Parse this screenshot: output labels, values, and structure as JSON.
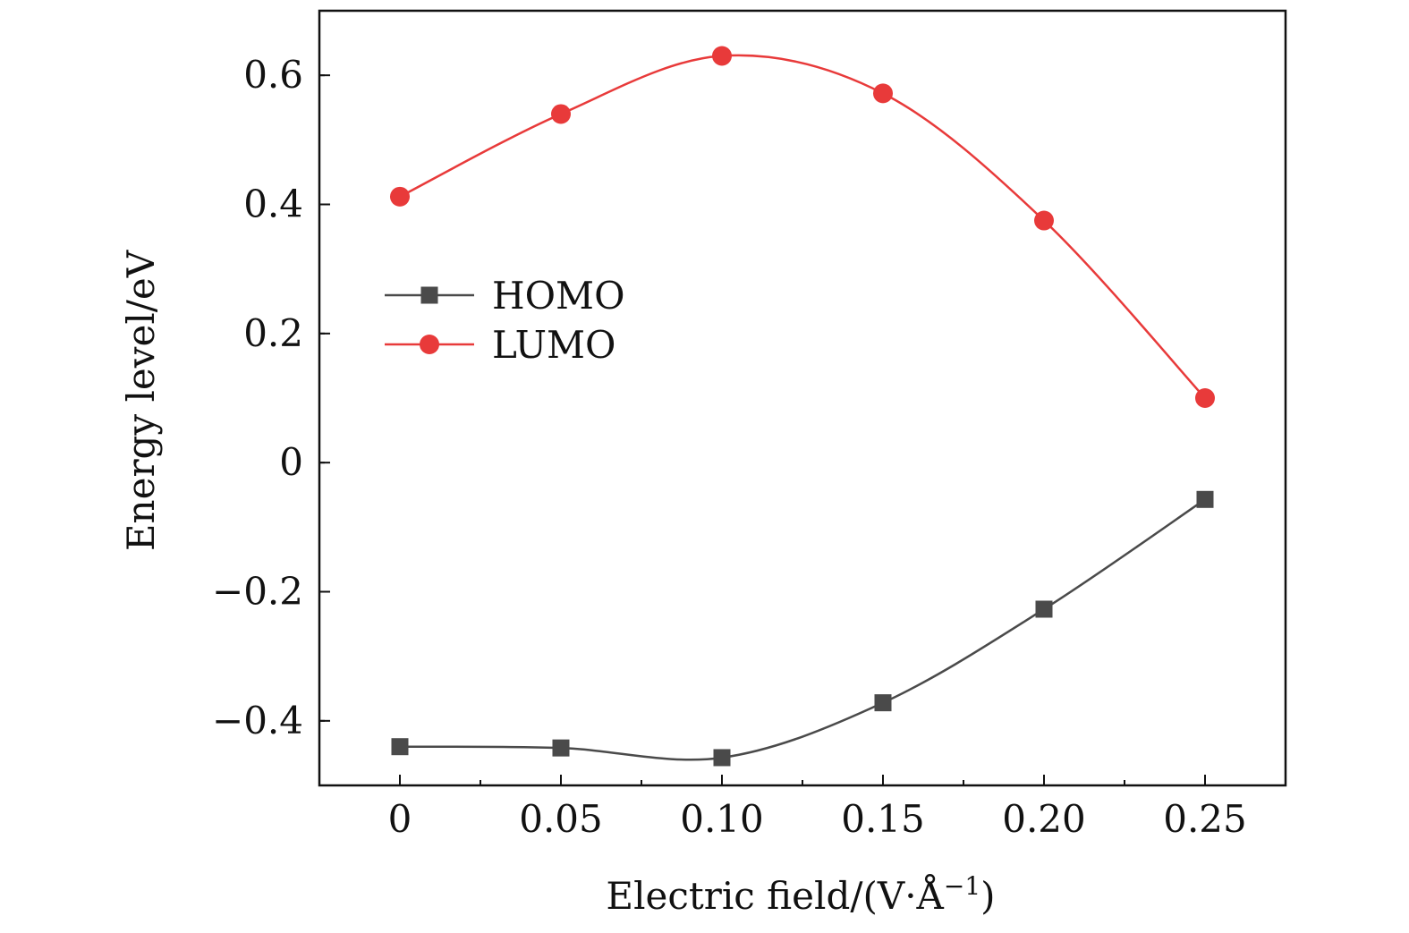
{
  "chart_data": {
    "type": "line",
    "xlabel": "Electric field/(V·Å",
    "xlabel_sup": "−1",
    "xlabel_close": ")",
    "ylabel": "Energy level/eV",
    "x": [
      0,
      0.05,
      0.1,
      0.15,
      0.2,
      0.25
    ],
    "x_tick_labels": [
      "0",
      "0.05",
      "0.10",
      "0.15",
      "0.20",
      "0.25"
    ],
    "xlim": [
      -0.025,
      0.275
    ],
    "y_ticks": [
      -0.4,
      -0.2,
      0,
      0.2,
      0.4,
      0.6
    ],
    "y_tick_labels": [
      "−0.4",
      "−0.2",
      "0",
      "0.2",
      "0.4",
      "0.6"
    ],
    "ylim": [
      -0.5,
      0.7
    ],
    "grid": false,
    "legend_position": "upper-left",
    "series": [
      {
        "name": "HOMO",
        "values": [
          -0.44,
          -0.442,
          -0.457,
          -0.372,
          -0.227,
          -0.057
        ],
        "color": "#4a4a4a",
        "marker": "square"
      },
      {
        "name": "LUMO",
        "values": [
          0.412,
          0.54,
          0.63,
          0.572,
          0.375,
          0.1
        ],
        "color": "#e83a3a",
        "marker": "circle"
      }
    ]
  }
}
